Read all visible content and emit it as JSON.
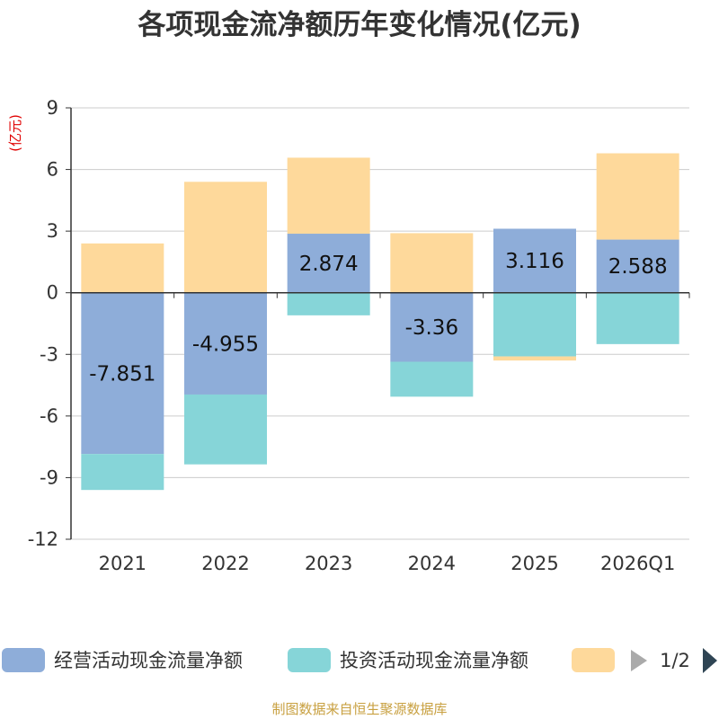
{
  "chart_data": {
    "type": "bar",
    "stacked": true,
    "title": "各项现金流净额历年变化情况(亿元)",
    "ylabel": "(亿元)",
    "xlabel": "",
    "categories": [
      "2021",
      "2022",
      "2023",
      "2024",
      "2025",
      "2026Q1"
    ],
    "ylim": [
      -12,
      9
    ],
    "yticks": [
      9,
      6,
      3,
      0,
      -3,
      -6,
      -9,
      -12
    ],
    "grid": true,
    "series": [
      {
        "name": "经营活动现金流量净额",
        "color": "#8eadd9",
        "values": [
          -7.851,
          -4.955,
          2.874,
          -3.36,
          3.116,
          2.588
        ]
      },
      {
        "name": "投资活动现金流量净额",
        "color": "#86d5d8",
        "values": [
          -1.75,
          -3.4,
          -1.1,
          -1.7,
          -3.1,
          -2.5
        ]
      },
      {
        "name": "",
        "color": "#fed99b",
        "values": [
          2.4,
          5.4,
          3.7,
          2.9,
          -0.2,
          4.2
        ]
      }
    ],
    "data_labels": [
      "-7.851",
      "-4.955",
      "2.874",
      "-3.36",
      "3.116",
      "2.588"
    ],
    "legend": {
      "position": "bottom",
      "page": "1/2"
    }
  },
  "source": "制图数据来自恒生聚源数据库"
}
